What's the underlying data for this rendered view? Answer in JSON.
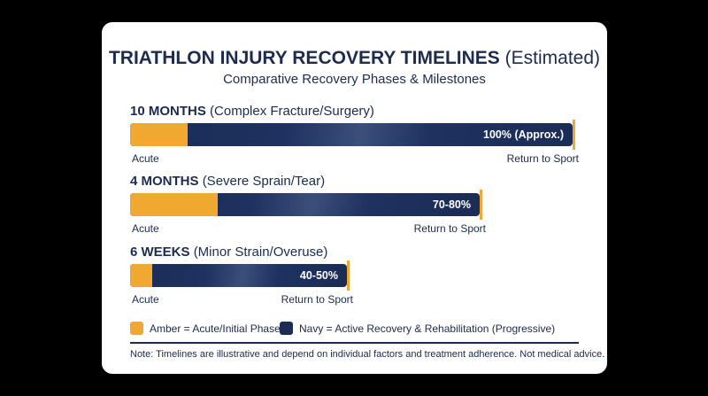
{
  "title_bold": "TRIATHLON INJURY RECOVERY TIMELINES",
  "title_rest": "(Estimated)",
  "subtitle": "Comparative Recovery Phases & Milestones",
  "chart_data": {
    "type": "bar",
    "orientation": "horizontal",
    "title": "TRIATHLON INJURY RECOVERY TIMELINES (Estimated)",
    "subtitle": "Comparative Recovery Phases & Milestones",
    "series": [
      {
        "duration": "10 MONTHS",
        "injury": "(Complex Fracture/Surgery)",
        "label": "100% (Approx.)",
        "total_value": 100,
        "acute_fraction": 0.13,
        "start_label": "Acute",
        "end_label": "Return to Sport"
      },
      {
        "duration": "4 MONTHS",
        "injury": "(Severe Sprain/Tear)",
        "label": "70-80%",
        "total_value": 79,
        "acute_fraction": 0.25,
        "start_label": "Acute",
        "end_label": "Return to Sport"
      },
      {
        "duration": "6 WEEKS",
        "injury": "(Minor Strain/Overuse)",
        "label": "40-50%",
        "total_value": 49,
        "acute_fraction": 0.1,
        "start_label": "Acute",
        "end_label": "Return to Sport"
      }
    ],
    "legend": [
      {
        "color": "#f0a830",
        "text": "Amber = Acute/Initial Phase"
      },
      {
        "color": "#1b2d55",
        "text": "Navy = Active Recovery & Rehabilitation (Progressive)"
      }
    ],
    "legend_position": "bottom-left",
    "grid": false
  },
  "note": "Note: Timelines are illustrative and depend on individual factors and treatment adherence. Not medical advice.",
  "colors": {
    "acute": "#f0a830",
    "navy": "#1b2d55",
    "text": "#1c2b4f",
    "card": "#ffffff",
    "background": "#000000"
  }
}
